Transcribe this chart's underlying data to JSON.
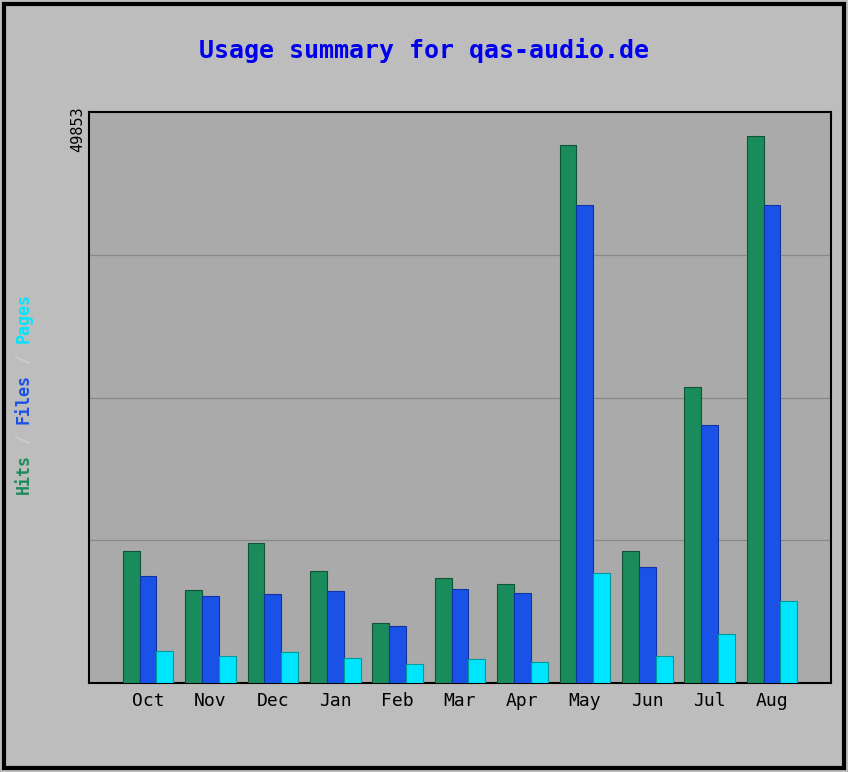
{
  "title": "Usage summary for qas-audio.de",
  "months": [
    "Oct",
    "Nov",
    "Dec",
    "Jan",
    "Feb",
    "Mar",
    "Apr",
    "May",
    "Jun",
    "Jul",
    "Aug"
  ],
  "hits": [
    12000,
    8500,
    12800,
    10200,
    5500,
    9600,
    9000,
    49000,
    12000,
    27000,
    49853
  ],
  "files": [
    9800,
    7900,
    8100,
    8400,
    5200,
    8600,
    8200,
    43500,
    10600,
    23500,
    43500
  ],
  "pages": [
    2900,
    2500,
    2800,
    2300,
    1750,
    2200,
    1950,
    10000,
    2500,
    4500,
    7500
  ],
  "bar_width": 0.27,
  "hits_color": "#1A8C5C",
  "files_color": "#1A52E8",
  "pages_color": "#00E5FF",
  "bg_outer": "#BDBDBD",
  "bg_plot": "#AAAAAA",
  "border_color": "#000000",
  "title_color": "#0000EE",
  "ylabel_color_pages": "#00E5FF",
  "ylabel_color_files": "#1A52E8",
  "ylabel_color_hits": "#1A8C5C",
  "ytick_label": "49853",
  "grid_color": "#888888",
  "ymax": 52000,
  "ylabel_text": "Pages / Files / Hits"
}
